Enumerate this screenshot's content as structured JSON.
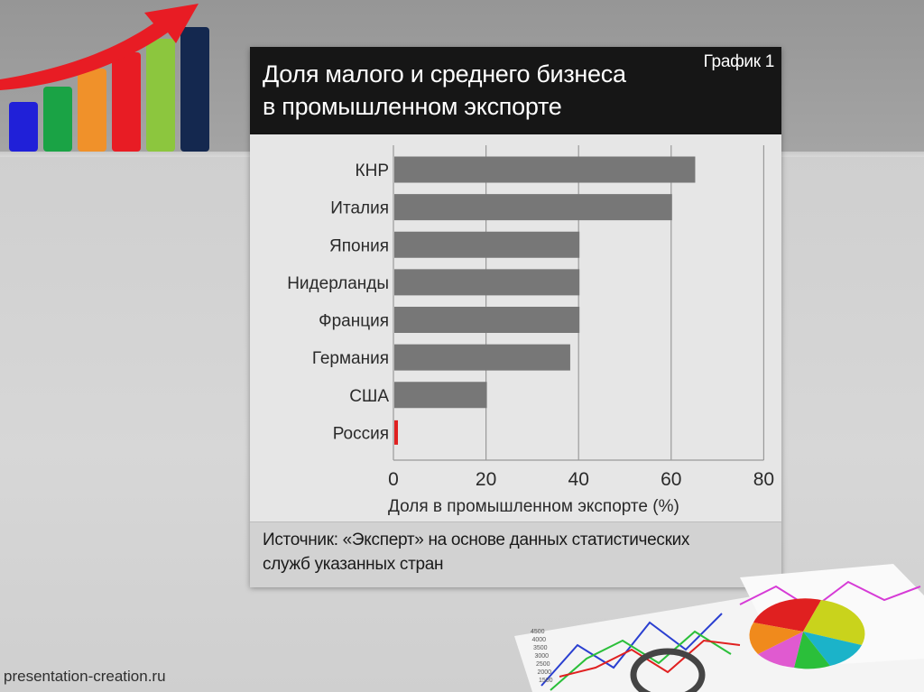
{
  "card": {
    "title_line1": "Доля малого и среднего бизнеса",
    "title_line2": "в промышленном экспорте",
    "badge": "График 1",
    "source_line1": "Источник: «Эксперт» на основе  данных статистических",
    "source_line2": "служб указанных стран"
  },
  "chart_data": {
    "type": "bar",
    "orientation": "horizontal",
    "categories": [
      "КНР",
      "Италия",
      "Япония",
      "Нидерланды",
      "Франция",
      "Германия",
      "США",
      "Россия"
    ],
    "values": [
      65,
      60,
      40,
      40,
      40,
      38,
      20,
      1
    ],
    "xlabel": "Доля в промышленном экспорте (%)",
    "xlim": [
      0,
      80
    ],
    "xticks": [
      0,
      20,
      40,
      60,
      80
    ],
    "grid": true,
    "bar_color": "#777777",
    "highlight_category": "Россия",
    "highlight_color": "#e02020"
  },
  "logo": {
    "bar_colors": [
      "#2020d8",
      "#1aa345",
      "#f0912a",
      "#e81c24",
      "#8cc63e",
      "#14284f"
    ],
    "arrow_color": "#e81c24"
  },
  "deco": {
    "axis_ticks": [
      "4500",
      "4000",
      "3500",
      "3000",
      "2500",
      "2000",
      "1500"
    ]
  },
  "footer": {
    "watermark": "presentation-creation.ru"
  }
}
